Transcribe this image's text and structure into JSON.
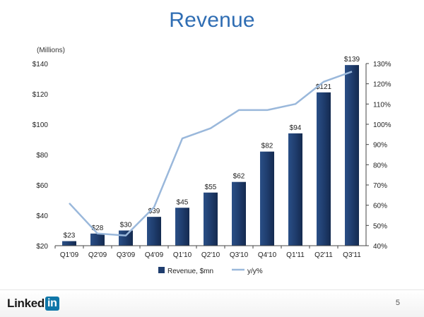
{
  "title": "Revenue",
  "footer": {
    "logo_text": "Linked",
    "logo_badge": "in",
    "page_number": "5"
  },
  "chart_data": {
    "type": "bar+line",
    "unit_label": "(Millions)",
    "categories": [
      "Q1'09",
      "Q2'09",
      "Q3'09",
      "Q4'09",
      "Q1'10",
      "Q2'10",
      "Q3'10",
      "Q4'10",
      "Q1'11",
      "Q2'11",
      "Q3'11"
    ],
    "series": [
      {
        "name": "Revenue, $mn",
        "axis": "left",
        "type": "bar",
        "values": [
          23,
          28,
          30,
          39,
          45,
          55,
          62,
          82,
          94,
          121,
          139
        ],
        "labels": [
          "$23",
          "$28",
          "$30",
          "$39",
          "$45",
          "$55",
          "$62",
          "$82",
          "$94",
          "$121",
          "$139"
        ],
        "color": "#1f3d6e"
      },
      {
        "name": "y/y%",
        "axis": "right",
        "type": "line",
        "values": [
          61,
          46,
          45,
          59,
          93,
          98,
          107,
          107,
          110,
          121,
          126
        ],
        "color": "#9ab8db"
      }
    ],
    "y_left": {
      "min": 20,
      "max": 140,
      "ticks": [
        "$20",
        "$40",
        "$60",
        "$80",
        "$100",
        "$120",
        "$140"
      ],
      "tick_values": [
        20,
        40,
        60,
        80,
        100,
        120,
        140
      ]
    },
    "y_right": {
      "min": 40,
      "max": 130,
      "ticks": [
        "40%",
        "50%",
        "60%",
        "70%",
        "80%",
        "90%",
        "100%",
        "110%",
        "120%",
        "130%"
      ],
      "tick_values": [
        40,
        50,
        60,
        70,
        80,
        90,
        100,
        110,
        120,
        130
      ]
    },
    "legend_position": "bottom",
    "grid": false
  }
}
